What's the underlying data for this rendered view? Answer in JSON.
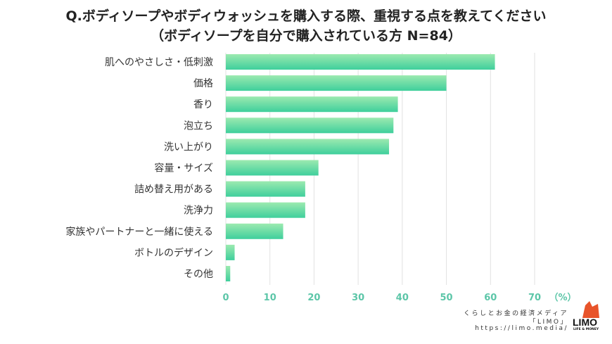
{
  "chart_data": {
    "type": "bar",
    "orientation": "horizontal",
    "title": "Q.ボディソープやボディウォッシュを購入する際、重視する点を教えてください",
    "subtitle": "（ボディソープを自分で購入されている方 N=84）",
    "categories": [
      "肌へのやさしさ・低刺激",
      "価格",
      "香り",
      "泡立ち",
      "洗い上がり",
      "容量・サイズ",
      "詰め替え用がある",
      "洗浄力",
      "家族やパートナーと一緒に使える",
      "ボトルのデザイン",
      "その他"
    ],
    "values": [
      61,
      50,
      39,
      38,
      37,
      21,
      18,
      18,
      13,
      2,
      1
    ],
    "xlim": [
      0,
      70
    ],
    "xticks": [
      0,
      10,
      20,
      30,
      40,
      50,
      60,
      70
    ],
    "xunit": "（%）",
    "grid": true,
    "bar_color": "#5fdca4",
    "tick_color": "#5cc6a8"
  },
  "credit": {
    "line1": "くらしとお金の経済メディア",
    "line2": "「LIMO」",
    "line3": "https://limo.media/"
  },
  "logo": {
    "text": "LIMO",
    "sub": "LIFE & MONEY",
    "color": "#e8542a"
  }
}
